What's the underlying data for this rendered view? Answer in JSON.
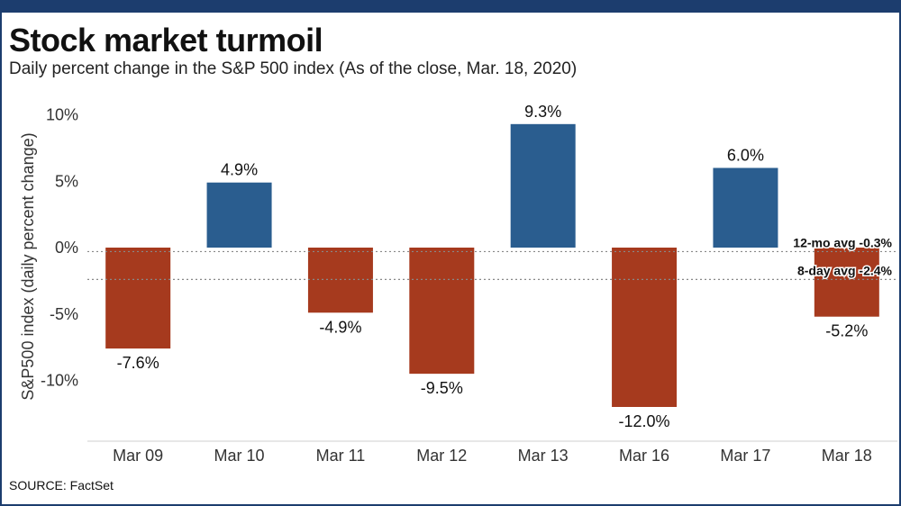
{
  "title": "Stock market turmoil",
  "subtitle": "Daily percent change in the S&P 500 index (As of the close,  Mar. 18, 2020)",
  "source": "SOURCE: FactSet",
  "colors": {
    "positive": "#2a5d8f",
    "negative": "#a63a1e",
    "frame": "#1c3d6e",
    "refline": "#888888"
  },
  "chart_data": {
    "type": "bar",
    "title": "Stock market turmoil",
    "subtitle": "Daily percent change in the S&P 500 index (As of the close,  Mar. 18, 2020)",
    "xlabel": "",
    "ylabel": "S&P500 index (daily percent change)",
    "categories": [
      "Mar 09",
      "Mar 10",
      "Mar 11",
      "Mar 12",
      "Mar 13",
      "Mar 16",
      "Mar 17",
      "Mar 18"
    ],
    "values": [
      -7.6,
      4.9,
      -4.9,
      -9.5,
      9.3,
      -12.0,
      6.0,
      -5.2
    ],
    "data_labels": [
      "-7.6%",
      "4.9%",
      "-4.9%",
      "-9.5%",
      "9.3%",
      "-12.0%",
      "6.0%",
      "-5.2%"
    ],
    "ylim": [
      -14.5,
      11
    ],
    "yticks": [
      10,
      5,
      0,
      -5,
      -10
    ],
    "ytick_labels": [
      "10%",
      "5%",
      "0%",
      "-5%",
      "-10%"
    ],
    "grid": false,
    "reference_lines": [
      {
        "label": "12-mo avg -0.3%",
        "value": -0.3
      },
      {
        "label": "8-day avg -2.4%",
        "value": -2.4
      }
    ]
  }
}
